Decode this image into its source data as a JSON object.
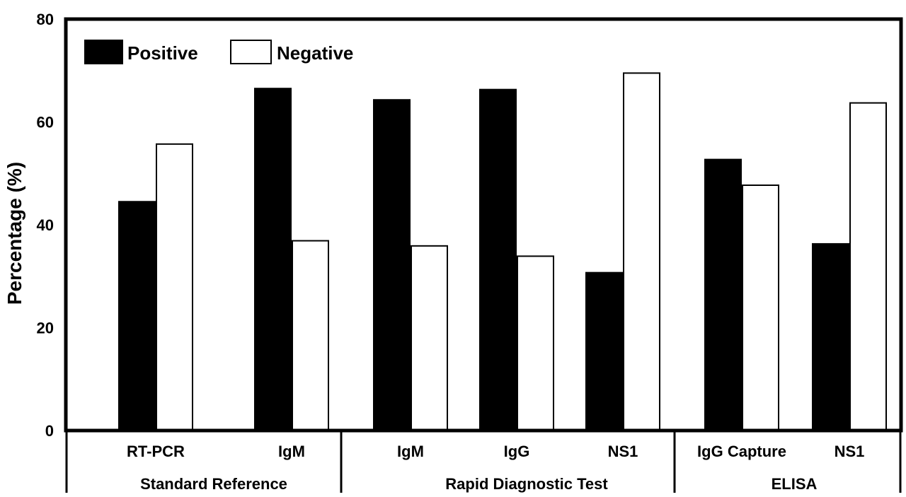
{
  "chart_data": {
    "type": "bar",
    "ylabel": "Percentage (%)",
    "ylim": [
      0,
      80
    ],
    "yticks": [
      "0",
      "20",
      "40",
      "60",
      "80"
    ],
    "grid": false,
    "legend_position": "top-left",
    "colors": {
      "Positive": "#000000",
      "Negative": "#ffffff",
      "outline": "#000000"
    },
    "categories": [
      "RT-PCR",
      "IgM",
      "IgM",
      "IgG",
      "NS1",
      "IgG Capture",
      "NS1"
    ],
    "groups": [
      {
        "label": "Standard Reference",
        "categories": [
          "RT-PCR",
          "IgM"
        ]
      },
      {
        "label": "Rapid Diagnostic Test",
        "categories": [
          "IgM",
          "IgG",
          "NS1"
        ]
      },
      {
        "label": "ELISA",
        "categories": [
          "IgG Capture",
          "NS1"
        ]
      }
    ],
    "series": [
      {
        "name": "Positive",
        "values": [
          44.5,
          66.5,
          64.3,
          66.3,
          30.7,
          52.7,
          36.3
        ]
      },
      {
        "name": "Negative",
        "values": [
          55.7,
          36.9,
          35.9,
          33.9,
          69.5,
          47.7,
          63.7
        ]
      }
    ]
  }
}
